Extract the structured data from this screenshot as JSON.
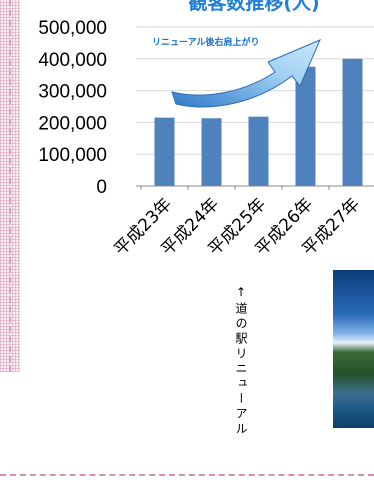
{
  "chart_data": {
    "type": "bar",
    "title": "観客数推移(人)",
    "annotation": "リニューアル後右肩上がり",
    "categories": [
      "平成23年",
      "平成24年",
      "平成25年",
      "平成26年",
      "平成27年"
    ],
    "values": [
      215000,
      213000,
      218000,
      375000,
      400000
    ],
    "yticks": [
      "0",
      "100,000",
      "200,000",
      "300,000",
      "400,000",
      "500,000"
    ],
    "ytick_values": [
      0,
      100000,
      200000,
      300000,
      400000,
      500000
    ],
    "ylim": [
      0,
      500000
    ],
    "bar_color": "#4f81bd",
    "grid": true,
    "legend": "none"
  },
  "side_note": "↑道の駅リニューアル",
  "photo_icon": "coast-photo"
}
